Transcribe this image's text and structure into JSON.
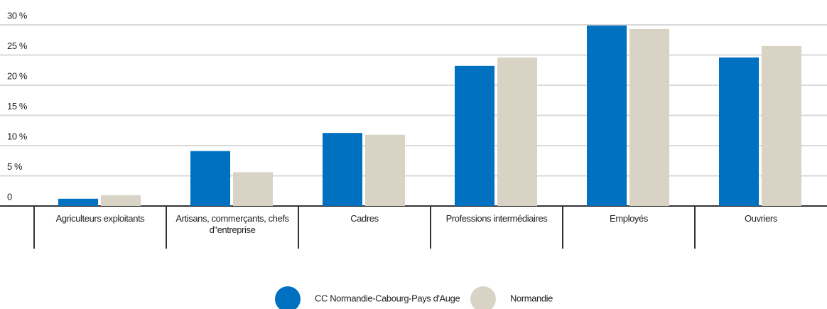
{
  "chart_data": {
    "type": "bar",
    "categories": [
      "Agriculteurs exploitants",
      "Artisans, commerçants, chefs d''entreprise",
      "Cadres",
      "Professions intermédiaires",
      "Employés",
      "Ouvriers"
    ],
    "series": [
      {
        "name": "CC Normandie-Cabourg-Pays d'Auge",
        "color": "#0070c0",
        "values": [
          1.2,
          9.1,
          12.1,
          23.2,
          29.9,
          24.6
        ]
      },
      {
        "name": "Normandie",
        "color": "#d8d3c4",
        "values": [
          1.8,
          5.6,
          11.8,
          24.6,
          29.3,
          26.5
        ]
      }
    ],
    "ylim": [
      0,
      30
    ],
    "yticks": [
      0,
      {
        "value": 5,
        "label": "5 %"
      },
      {
        "value": 10,
        "label": "10 %"
      },
      {
        "value": 15,
        "label": "15 %"
      },
      {
        "value": 20,
        "label": "20 %"
      },
      {
        "value": 25,
        "label": "25 %"
      },
      {
        "value": 30,
        "label": "30 %"
      }
    ],
    "grid": true,
    "legend": "bottom"
  }
}
